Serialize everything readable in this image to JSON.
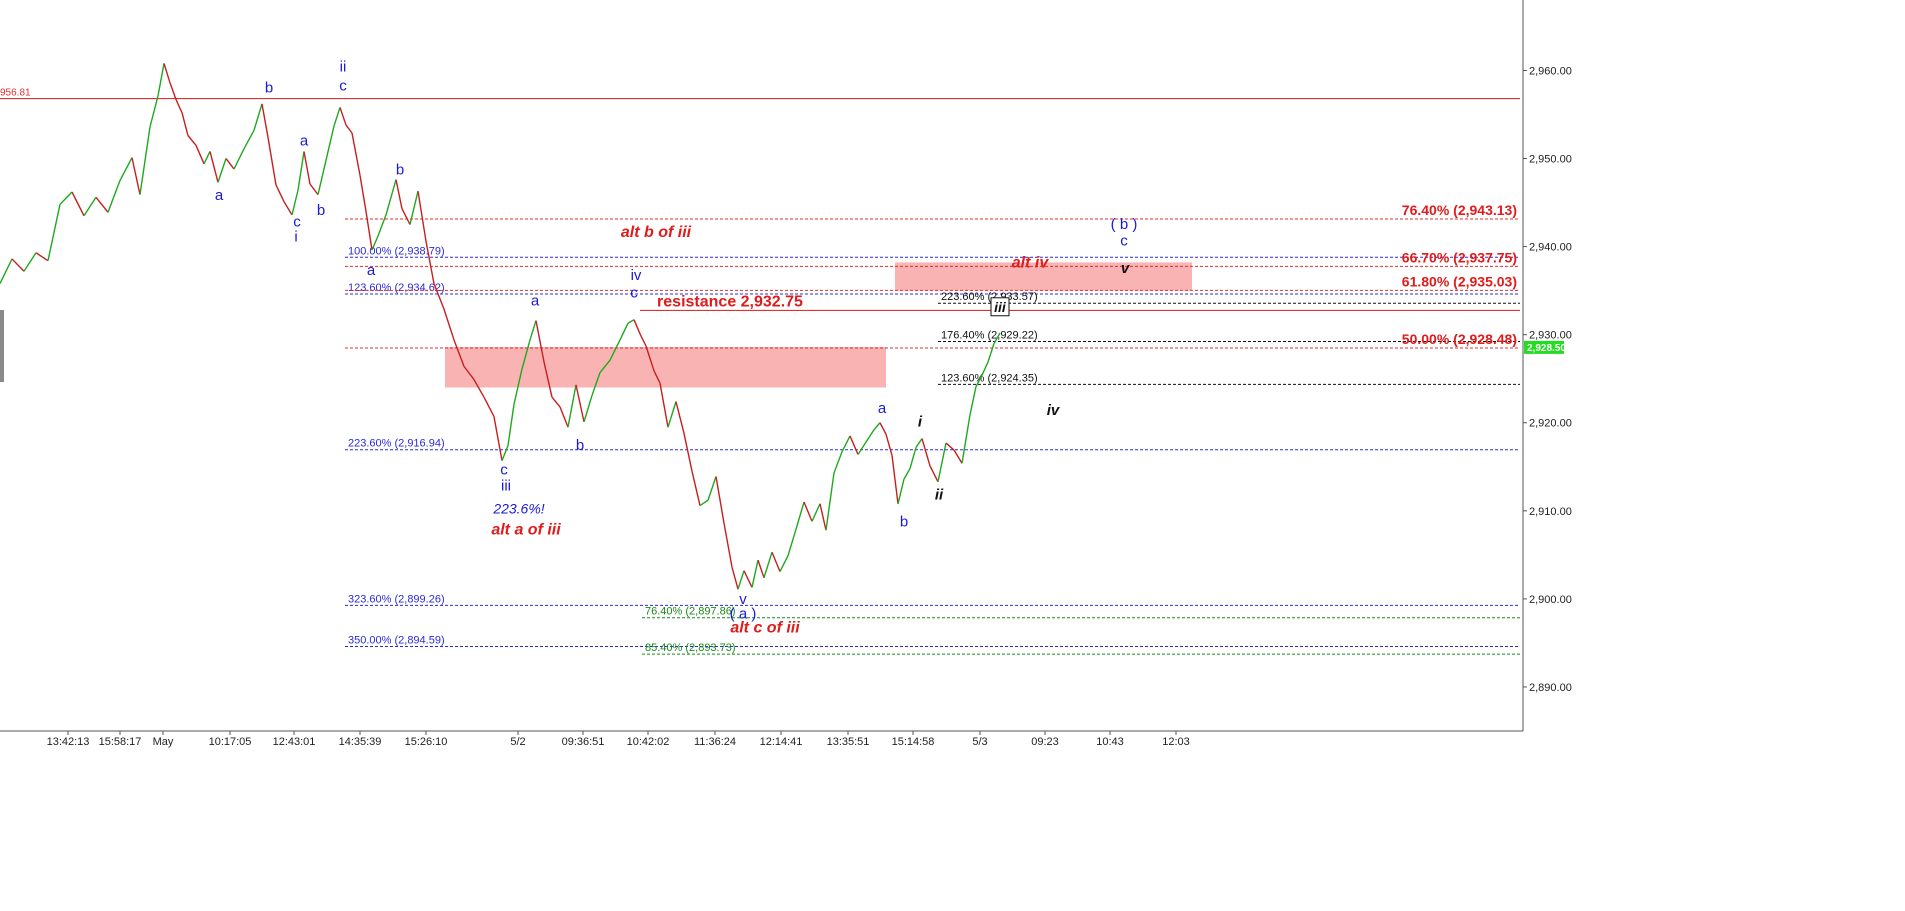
{
  "chart_data": {
    "type": "candlestick",
    "instrument_price_tag": "2,928.50",
    "partial_level_label": "956.81",
    "y_axis": {
      "ylim": [
        2885,
        2968
      ],
      "ticks": [
        "2,890.00",
        "2,900.00",
        "2,910.00",
        "2,920.00",
        "2,930.00",
        "2,940.00",
        "2,950.00",
        "2,960.00"
      ],
      "tick_values": [
        2890,
        2900,
        2910,
        2920,
        2930,
        2940,
        2950,
        2960
      ]
    },
    "x_axis": {
      "ticks": [
        "13:42:13",
        "15:58:17",
        "May",
        "10:17:05",
        "12:43:01",
        "14:35:39",
        "15:26:10",
        "5/2",
        "09:36:51",
        "10:42:02",
        "11:36:24",
        "12:14:41",
        "13:35:51",
        "15:14:58",
        "5/3",
        "09:23",
        "10:43",
        "12:03"
      ]
    },
    "price_path": [
      [
        0,
        2935.8
      ],
      [
        12,
        2938.6
      ],
      [
        24,
        2937.2
      ],
      [
        36,
        2939.3
      ],
      [
        48,
        2938.4
      ],
      [
        60,
        2944.8
      ],
      [
        72,
        2946.2
      ],
      [
        84,
        2943.5
      ],
      [
        96,
        2945.6
      ],
      [
        108,
        2943.9
      ],
      [
        120,
        2947.5
      ],
      [
        132,
        2950.1
      ],
      [
        140,
        2945.9
      ],
      [
        150,
        2953.6
      ],
      [
        158,
        2957.1
      ],
      [
        164,
        2960.8
      ],
      [
        170,
        2958.6
      ],
      [
        176,
        2956.7
      ],
      [
        182,
        2955.2
      ],
      [
        188,
        2952.6
      ],
      [
        196,
        2951.5
      ],
      [
        204,
        2949.4
      ],
      [
        210,
        2950.8
      ],
      [
        218,
        2947.3
      ],
      [
        226,
        2950.0
      ],
      [
        234,
        2948.8
      ],
      [
        244,
        2951.1
      ],
      [
        254,
        2953.2
      ],
      [
        262,
        2956.2
      ],
      [
        268,
        2952.4
      ],
      [
        276,
        2947.0
      ],
      [
        284,
        2945.1
      ],
      [
        292,
        2943.6
      ],
      [
        298,
        2946.4
      ],
      [
        304,
        2950.8
      ],
      [
        310,
        2947.1
      ],
      [
        318,
        2945.9
      ],
      [
        326,
        2949.8
      ],
      [
        334,
        2953.7
      ],
      [
        340,
        2955.8
      ],
      [
        346,
        2953.8
      ],
      [
        352,
        2952.9
      ],
      [
        360,
        2948.1
      ],
      [
        366,
        2944.0
      ],
      [
        372,
        2939.6
      ],
      [
        378,
        2941.2
      ],
      [
        386,
        2943.6
      ],
      [
        396,
        2947.6
      ],
      [
        402,
        2944.3
      ],
      [
        410,
        2942.5
      ],
      [
        418,
        2946.3
      ],
      [
        426,
        2940.6
      ],
      [
        434,
        2935.8
      ],
      [
        444,
        2932.9
      ],
      [
        454,
        2929.4
      ],
      [
        464,
        2926.4
      ],
      [
        474,
        2924.9
      ],
      [
        484,
        2922.9
      ],
      [
        494,
        2920.7
      ],
      [
        502,
        2915.7
      ],
      [
        508,
        2917.4
      ],
      [
        514,
        2922.1
      ],
      [
        522,
        2926.1
      ],
      [
        530,
        2929.4
      ],
      [
        536,
        2931.6
      ],
      [
        544,
        2926.9
      ],
      [
        552,
        2922.9
      ],
      [
        560,
        2921.8
      ],
      [
        568,
        2919.5
      ],
      [
        576,
        2924.3
      ],
      [
        584,
        2920.1
      ],
      [
        592,
        2923.1
      ],
      [
        600,
        2925.7
      ],
      [
        610,
        2927.1
      ],
      [
        620,
        2929.4
      ],
      [
        628,
        2931.3
      ],
      [
        634,
        2931.7
      ],
      [
        640,
        2930.1
      ],
      [
        646,
        2928.7
      ],
      [
        654,
        2925.9
      ],
      [
        660,
        2924.5
      ],
      [
        668,
        2919.5
      ],
      [
        676,
        2922.4
      ],
      [
        684,
        2918.8
      ],
      [
        692,
        2914.5
      ],
      [
        700,
        2910.6
      ],
      [
        708,
        2911.2
      ],
      [
        716,
        2913.9
      ],
      [
        724,
        2908.6
      ],
      [
        732,
        2903.6
      ],
      [
        738,
        2901.1
      ],
      [
        744,
        2903.2
      ],
      [
        752,
        2901.3
      ],
      [
        758,
        2904.4
      ],
      [
        764,
        2902.4
      ],
      [
        772,
        2905.3
      ],
      [
        780,
        2903.1
      ],
      [
        788,
        2904.9
      ],
      [
        796,
        2907.9
      ],
      [
        804,
        2911.0
      ],
      [
        812,
        2908.8
      ],
      [
        820,
        2910.8
      ],
      [
        826,
        2907.8
      ],
      [
        834,
        2914.3
      ],
      [
        842,
        2916.7
      ],
      [
        850,
        2918.5
      ],
      [
        858,
        2916.4
      ],
      [
        866,
        2917.8
      ],
      [
        874,
        2919.2
      ],
      [
        880,
        2920.0
      ],
      [
        886,
        2918.7
      ],
      [
        892,
        2916.3
      ],
      [
        898,
        2910.8
      ],
      [
        904,
        2913.6
      ],
      [
        910,
        2914.8
      ],
      [
        916,
        2917.2
      ],
      [
        922,
        2918.2
      ],
      [
        930,
        2915.1
      ],
      [
        938,
        2913.3
      ],
      [
        946,
        2917.7
      ],
      [
        954,
        2916.9
      ],
      [
        962,
        2915.4
      ],
      [
        970,
        2920.9
      ],
      [
        976,
        2924.1
      ],
      [
        982,
        2925.4
      ],
      [
        988,
        2926.9
      ],
      [
        994,
        2929.0
      ],
      [
        1000,
        2930.2
      ]
    ],
    "fib_levels": [
      {
        "label": "100.00% (2,938.79)",
        "value": 2938.79,
        "color": "#2b2bd6",
        "x1": 345,
        "x2": 1520,
        "label_x": 348
      },
      {
        "label": "123.60% (2,934.62)",
        "value": 2934.62,
        "color": "#2b2bd6",
        "x1": 345,
        "x2": 1520,
        "label_x": 348
      },
      {
        "label": "223.60% (2,916.94)",
        "value": 2916.94,
        "color": "#2b2bd6",
        "x1": 345,
        "x2": 1520,
        "label_x": 348
      },
      {
        "label": "323.60% (2,899.26)",
        "value": 2899.26,
        "color": "#2b2bd6",
        "x1": 345,
        "x2": 1520,
        "label_x": 348
      },
      {
        "label": "350.00% (2,894.59)",
        "value": 2894.59,
        "color": "#2b2bd6",
        "x1": 345,
        "x2": 1520,
        "label_x": 348
      },
      {
        "label": "76.40% (2,897.86)",
        "value": 2897.86,
        "color": "#1a8a1a",
        "x1": 642,
        "x2": 1520,
        "label_x": 645
      },
      {
        "label": "85.40% (2,893.73)",
        "value": 2893.73,
        "color": "#1a8a1a",
        "x1": 642,
        "x2": 1520,
        "label_x": 645
      },
      {
        "label": "223.60% (2,933.57)",
        "value": 2933.57,
        "color": "#111111",
        "x1": 938,
        "x2": 1520,
        "label_x": 941
      },
      {
        "label": "176.40% (2,929.22)",
        "value": 2929.22,
        "color": "#111111",
        "x1": 938,
        "x2": 1520,
        "label_x": 941
      },
      {
        "label": "123.60% (2,924.35)",
        "value": 2924.35,
        "color": "#111111",
        "x1": 938,
        "x2": 1520,
        "label_x": 941
      }
    ],
    "red_levels": [
      {
        "label": "76.40% (2,943.13)",
        "value": 2943.13
      },
      {
        "label": "66.70% (2,937.75)",
        "value": 2937.75
      },
      {
        "label": "61.80% (2,935.03)",
        "value": 2935.03
      },
      {
        "label": "50.00% (2,928.48)",
        "value": 2928.48
      }
    ],
    "solid_levels": [
      {
        "value": 2956.81,
        "x1": 0,
        "x2": 1520
      },
      {
        "value": 2932.75,
        "x1": 640,
        "x2": 1520
      }
    ],
    "zones": [
      {
        "x1": 445,
        "x2": 886,
        "y_top": 2928.6,
        "y_bottom": 2924.0
      },
      {
        "x1": 895,
        "x2": 1192,
        "y_top": 2938.2,
        "y_bottom": 2935.0
      }
    ],
    "annotations": [
      {
        "text": "b",
        "x": 269,
        "y": 2957.5,
        "color": "#1a1ad6",
        "size": 15,
        "style": "normal"
      },
      {
        "text": "ii",
        "x": 343,
        "y": 2959.9,
        "color": "#1a1ad6",
        "size": 15,
        "style": "normal"
      },
      {
        "text": "c",
        "x": 343,
        "y": 2957.7,
        "color": "#1a1ad6",
        "size": 15,
        "style": "normal"
      },
      {
        "text": "a",
        "x": 304,
        "y": 2951.5,
        "color": "#1a1ad6",
        "size": 15,
        "style": "normal"
      },
      {
        "text": "b",
        "x": 400,
        "y": 2948.2,
        "color": "#1a1ad6",
        "size": 15,
        "style": "normal"
      },
      {
        "text": "a",
        "x": 219,
        "y": 2945.3,
        "color": "#1a1ad6",
        "size": 15,
        "style": "normal"
      },
      {
        "text": "b",
        "x": 321,
        "y": 2943.6,
        "color": "#1a1ad6",
        "size": 15,
        "style": "normal"
      },
      {
        "text": "c",
        "x": 297,
        "y": 2942.3,
        "color": "#1a1ad6",
        "size": 15,
        "style": "normal"
      },
      {
        "text": "i",
        "x": 296,
        "y": 2940.6,
        "color": "#1a1ad6",
        "size": 15,
        "style": "normal"
      },
      {
        "text": "a",
        "x": 371,
        "y": 2936.8,
        "color": "#1a1ad6",
        "size": 15,
        "style": "normal"
      },
      {
        "text": "iv",
        "x": 636,
        "y": 2936.2,
        "color": "#1a1ad6",
        "size": 15,
        "style": "normal"
      },
      {
        "text": "c",
        "x": 634,
        "y": 2934.2,
        "color": "#1a1ad6",
        "size": 15,
        "style": "normal"
      },
      {
        "text": "a",
        "x": 535,
        "y": 2933.3,
        "color": "#1a1ad6",
        "size": 15,
        "style": "normal"
      },
      {
        "text": "b",
        "x": 580,
        "y": 2916.9,
        "color": "#1a1ad6",
        "size": 15,
        "style": "normal"
      },
      {
        "text": "c",
        "x": 504,
        "y": 2914.1,
        "color": "#1a1ad6",
        "size": 15,
        "style": "normal"
      },
      {
        "text": "iii",
        "x": 506,
        "y": 2912.3,
        "color": "#1a1ad6",
        "size": 15,
        "style": "normal"
      },
      {
        "text": "223.6%!",
        "x": 519,
        "y": 2909.7,
        "color": "#1a1ad6",
        "size": 14,
        "style": "italic"
      },
      {
        "text": "a",
        "x": 882,
        "y": 2921.1,
        "color": "#1a1ad6",
        "size": 15,
        "style": "normal"
      },
      {
        "text": "b",
        "x": 904,
        "y": 2908.2,
        "color": "#1a1ad6",
        "size": 15,
        "style": "normal"
      },
      {
        "text": "v",
        "x": 743,
        "y": 2899.4,
        "color": "#1a1ad6",
        "size": 15,
        "style": "normal"
      },
      {
        "text": "( a )",
        "x": 743,
        "y": 2897.8,
        "color": "#1a1ad6",
        "size": 15,
        "style": "normal"
      },
      {
        "text": "( b )",
        "x": 1124,
        "y": 2942.0,
        "color": "#1a1ad6",
        "size": 15,
        "style": "normal"
      },
      {
        "text": "c",
        "x": 1124,
        "y": 2940.1,
        "color": "#1a1ad6",
        "size": 15,
        "style": "normal"
      },
      {
        "text": "i",
        "x": 920,
        "y": 2919.6,
        "color": "#111111",
        "size": 15,
        "style": "italic-bold"
      },
      {
        "text": "ii",
        "x": 939,
        "y": 2911.3,
        "color": "#111111",
        "size": 15,
        "style": "italic-bold"
      },
      {
        "text": "iv",
        "x": 1053,
        "y": 2920.9,
        "color": "#111111",
        "size": 15,
        "style": "italic-bold"
      },
      {
        "text": "v",
        "x": 1125,
        "y": 2937.0,
        "color": "#111111",
        "size": 15,
        "style": "italic-bold"
      },
      {
        "text": "alt b of iii",
        "x": 656,
        "y": 2941.1,
        "color": "#e01b1b",
        "size": 16,
        "style": "italic-bold"
      },
      {
        "text": "alt a of iii",
        "x": 526,
        "y": 2907.3,
        "color": "#e01b1b",
        "size": 16,
        "style": "italic-bold"
      },
      {
        "text": "alt c of iii",
        "x": 765,
        "y": 2896.2,
        "color": "#e01b1b",
        "size": 16,
        "style": "italic-bold"
      },
      {
        "text": "alt iv",
        "x": 1030,
        "y": 2937.6,
        "color": "#e01b1b",
        "size": 16,
        "style": "italic-bold"
      },
      {
        "text": "resistance 2,932.75",
        "x": 730,
        "y": 2933.2,
        "color": "#e01b1b",
        "size": 16,
        "style": "bold"
      }
    ],
    "boxed_annotation": {
      "text": "iii",
      "x": 1000,
      "y": 2932.6
    }
  }
}
